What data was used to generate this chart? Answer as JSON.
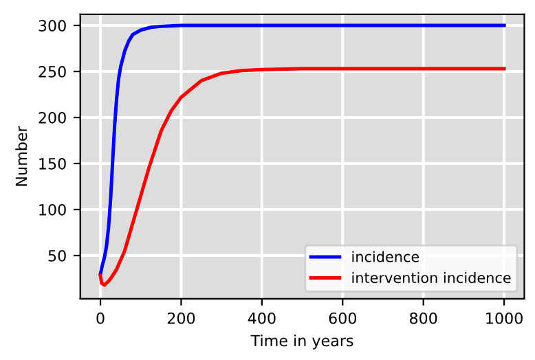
{
  "chart_data": {
    "type": "line",
    "xlabel": "Time in years",
    "ylabel": "Number",
    "xlim": [
      -50,
      1050
    ],
    "ylim": [
      3,
      312
    ],
    "xticks": [
      0,
      200,
      400,
      600,
      800,
      1000
    ],
    "yticks": [
      50,
      100,
      150,
      200,
      250,
      300
    ],
    "grid": true,
    "legend": "bottom right",
    "line_style": "solid",
    "marker": "none",
    "series": [
      {
        "name": "incidence",
        "color": "#0000ff",
        "x": [
          0,
          5,
          10,
          15,
          20,
          25,
          30,
          35,
          40,
          45,
          50,
          60,
          70,
          80,
          100,
          125,
          150,
          200,
          300,
          500,
          1000
        ],
        "values": [
          30,
          40,
          48,
          60,
          80,
          110,
          150,
          190,
          220,
          242,
          255,
          272,
          283,
          290,
          295,
          298,
          299,
          300,
          300,
          300,
          300
        ]
      },
      {
        "name": "intervention incidence",
        "color": "#ff0000",
        "x": [
          0,
          3,
          10,
          20,
          30,
          40,
          60,
          80,
          100,
          120,
          150,
          175,
          200,
          250,
          300,
          350,
          400,
          500,
          700,
          1000
        ],
        "values": [
          28,
          20,
          18,
          22,
          28,
          35,
          55,
          85,
          115,
          145,
          185,
          207,
          222,
          240,
          248,
          251,
          252,
          253,
          253,
          253
        ]
      }
    ]
  }
}
